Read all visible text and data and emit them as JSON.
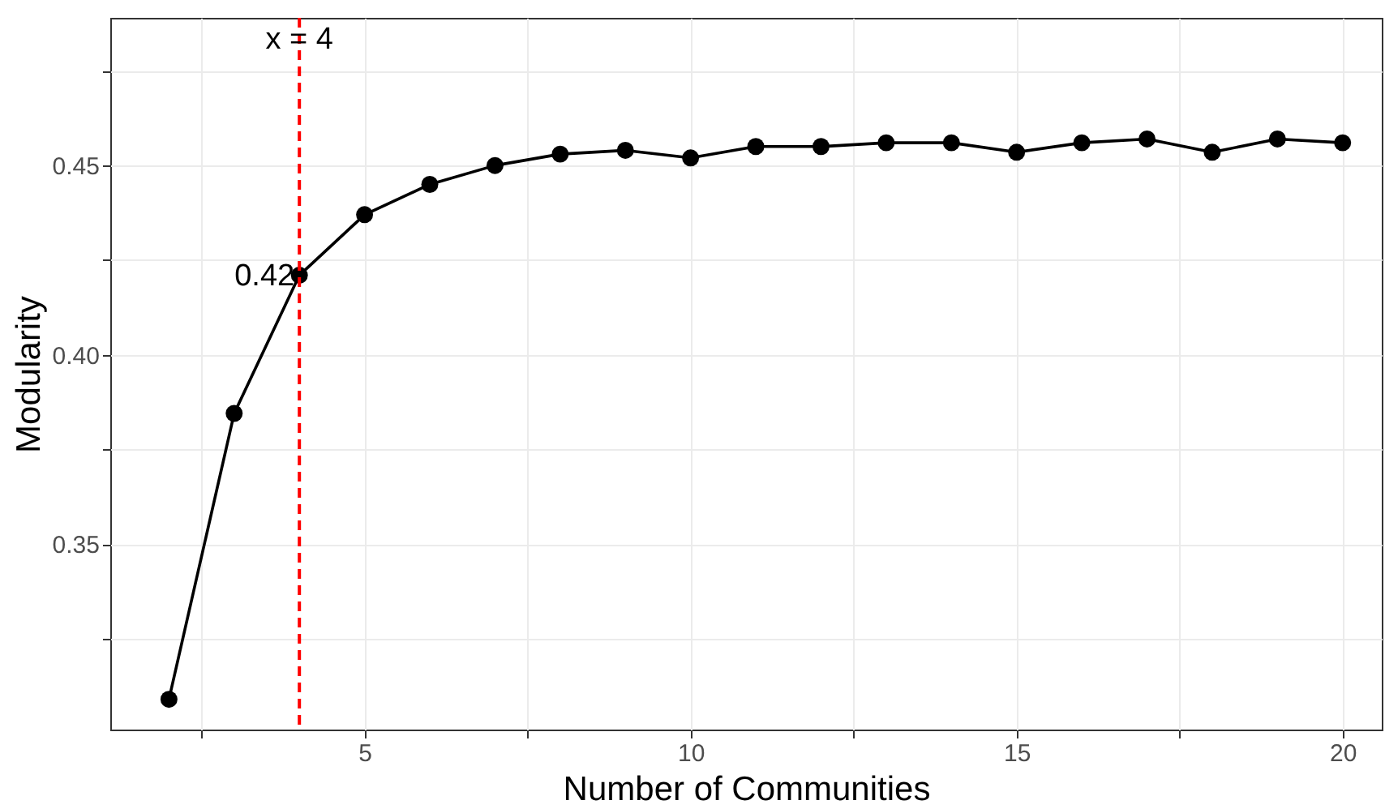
{
  "chart_data": {
    "type": "line",
    "xlabel": "Number of Communities",
    "ylabel": "Modularity",
    "x": [
      2,
      3,
      4,
      5,
      6,
      7,
      8,
      9,
      10,
      11,
      12,
      13,
      14,
      15,
      16,
      17,
      18,
      19,
      20
    ],
    "series": [
      {
        "color": "#000000",
        "values": [
          0.309,
          0.3845,
          0.421,
          0.437,
          0.445,
          0.45,
          0.453,
          0.454,
          0.452,
          0.455,
          0.455,
          0.456,
          0.456,
          0.4535,
          0.456,
          0.457,
          0.4535,
          0.457,
          0.456
        ]
      }
    ],
    "xlim": [
      1.1,
      20.6
    ],
    "ylim": [
      0.301,
      0.489
    ],
    "xticks": [
      {
        "value": 2.5,
        "label": null
      },
      5,
      {
        "value": 7.5,
        "label": null
      },
      10,
      {
        "value": 12.5,
        "label": null
      },
      15,
      {
        "value": 17.5,
        "label": null
      },
      20
    ],
    "yticks": [
      {
        "value": 0.325,
        "label": null
      },
      {
        "value": 0.35,
        "label": "0.35"
      },
      {
        "value": 0.375,
        "label": null
      },
      {
        "value": 0.4,
        "label": "0.40"
      },
      {
        "value": 0.425,
        "label": null
      },
      {
        "value": 0.45,
        "label": "0.45"
      },
      {
        "value": 0.475,
        "label": null
      }
    ],
    "ref_lines": [
      {
        "axis": "x",
        "value": 4,
        "label": "x = 4",
        "color": "#ff0000",
        "line_style": "dashed"
      }
    ],
    "annotations": [
      {
        "text": "0.42",
        "x": 4,
        "y": 0.421
      }
    ],
    "grid": true,
    "marker": "circle",
    "line_style": "solid"
  }
}
